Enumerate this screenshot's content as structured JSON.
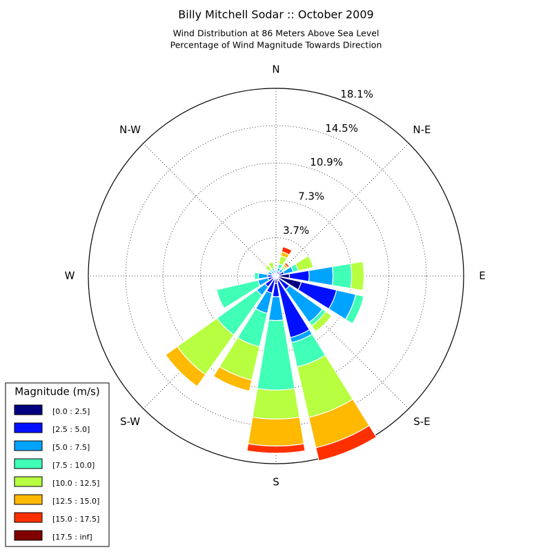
{
  "chart_data": {
    "type": "windrose",
    "title": "Billy Mitchell Sodar :: October 2009",
    "subtitle": [
      "Wind Distribution at 86 Meters Above Sea Level",
      "Percentage of Wind Magnitude Towards Direction"
    ],
    "directions": [
      "N",
      "N-E",
      "E",
      "S-E",
      "S",
      "S-W",
      "W",
      "N-W"
    ],
    "ylim": [
      0,
      18.1
    ],
    "yticks": [
      {
        "value": 3.7,
        "label": "3.7%"
      },
      {
        "value": 7.3,
        "label": "7.3%"
      },
      {
        "value": 10.9,
        "label": "10.9%"
      },
      {
        "value": 14.5,
        "label": "14.5%"
      },
      {
        "value": 18.1,
        "label": "18.1%"
      }
    ],
    "grid": true,
    "legend_title": "Magnitude (m/s)",
    "legend": "lower left",
    "series": [
      {
        "name": "[0.0 : 2.5]",
        "color": "#000080",
        "values": [
          0.2,
          0.2,
          0.2,
          0.3,
          1.3,
          2.5,
          0.4,
          0.5,
          0.7,
          0.4,
          0.3,
          0.3,
          0.3,
          0.2,
          0.2,
          0.2
        ]
      },
      {
        "name": "[2.5 : 5.0]",
        "color": "#0010ff",
        "values": [
          0.2,
          0.3,
          0.3,
          0.5,
          1.9,
          3.5,
          1.2,
          5.6,
          1.3,
          1.3,
          1.0,
          0.5,
          0.5,
          0.2,
          0.2,
          0.2
        ]
      },
      {
        "name": "[5.0 : 7.5]",
        "color": "#00a4ff",
        "values": [
          0.2,
          0.3,
          0.3,
          0.9,
          2.3,
          1.9,
          3.9,
          0.5,
          2.3,
          2.0,
          1.0,
          1.0,
          0.9,
          0.4,
          0.2,
          0.2
        ]
      },
      {
        "name": "[7.5 : 10.0]",
        "color": "#40ffb7",
        "values": [
          0,
          0.4,
          0.2,
          0.5,
          1.8,
          0.8,
          0.4,
          2.4,
          6.7,
          3.3,
          4.7,
          4.1,
          0.4,
          0,
          0.2,
          0.2
        ]
      },
      {
        "name": "[10.0 : 12.5]",
        "color": "#b7ff40",
        "values": [
          0,
          0.8,
          0.2,
          1.5,
          1.2,
          0,
          0.7,
          5.0,
          2.8,
          3.3,
          4.7,
          0,
          0,
          0,
          0.5,
          0.6
        ]
      },
      {
        "name": "[12.5 : 15.0]",
        "color": "#ffb900",
        "values": [
          0,
          0.4,
          0.2,
          0,
          0,
          0,
          0,
          3.0,
          2.6,
          1.1,
          1.4,
          0,
          0,
          0,
          0,
          0
        ]
      },
      {
        "name": "[15.0 : 17.5]",
        "color": "#ff3000",
        "values": [
          0,
          0.5,
          0.2,
          0,
          0,
          0,
          0,
          1.3,
          0.7,
          0,
          0,
          0,
          0,
          0,
          0,
          0
        ]
      },
      {
        "name": "[17.5 : inf]",
        "color": "#800000",
        "values": [
          0,
          0,
          0,
          0,
          0,
          0,
          0,
          0,
          0,
          0,
          0,
          0,
          0,
          0,
          0,
          0
        ]
      }
    ]
  }
}
